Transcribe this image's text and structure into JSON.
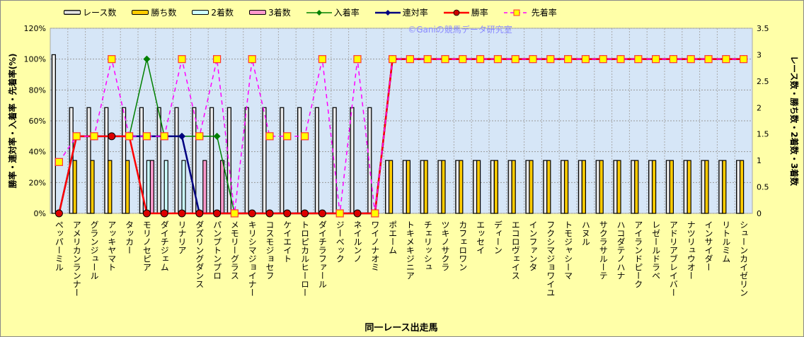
{
  "watermark": "©Ganiの競馬データ研究室",
  "chart_data": {
    "type": "bar",
    "title": "",
    "xlabel": "同一レース出走馬",
    "ylabel": "勝率・連対率・入着率・先着率(%)",
    "y2label": "レース数・勝ち数・2着数・3着数",
    "ylim": [
      0,
      120
    ],
    "y2lim": [
      0,
      3.5
    ],
    "yticks": [
      "0%",
      "20%",
      "40%",
      "60%",
      "80%",
      "100%",
      "120%"
    ],
    "y2ticks": [
      "0",
      "0.5",
      "1",
      "1.5",
      "2",
      "2.5",
      "3",
      "3.5"
    ],
    "grid": true,
    "legend_position": "top",
    "categories": [
      "ペッパーミル",
      "アメリカンランナー",
      "グランジュール",
      "アッキヤマト",
      "タッカー",
      "モリノセピア",
      "ダイチジェム",
      "リナリア",
      "ダズリングダンス",
      "パンプトンプロ",
      "メモリーグラス",
      "キリシマジョイナー",
      "コスモジョセフ",
      "ケイエイト",
      "トロピカルヒーロー",
      "ダイチラファール",
      "ジーベック",
      "ネイルンノ",
      "ワイノナオミ",
      "ポエーム",
      "トキメキジニア",
      "チェリッシュ",
      "ツキノサクラ",
      "カフェロワン",
      "エッセイ",
      "ディーン",
      "エコロヴェイス",
      "インファンタ",
      "フクシマジョワイユ",
      "トモジャシーマ",
      "ハヌル",
      "サクラサルーテ",
      "ハコダテノハナ",
      "アイランドピーク",
      "レゼールドラベ",
      "アドリアブレイバー",
      "ナツリュウオー",
      "インサイダー",
      "リトルミム",
      "シューンカイゼリン"
    ],
    "bar_series": [
      {
        "name": "レース数",
        "axis": "right",
        "color": "#ffffff",
        "values": [
          3,
          2,
          2,
          2,
          2,
          2,
          2,
          2,
          2,
          2,
          2,
          2,
          2,
          2,
          2,
          2,
          2,
          2,
          2,
          1,
          1,
          1,
          1,
          1,
          1,
          1,
          1,
          1,
          1,
          1,
          1,
          1,
          1,
          1,
          1,
          1,
          1,
          1,
          1,
          1
        ]
      },
      {
        "name": "勝ち数",
        "axis": "right",
        "color": "#ffcc00",
        "values": [
          0,
          1,
          1,
          1,
          1,
          0,
          0,
          0,
          0,
          0,
          0,
          0,
          0,
          0,
          0,
          0,
          0,
          0,
          0,
          1,
          1,
          1,
          1,
          1,
          1,
          1,
          1,
          1,
          1,
          1,
          1,
          1,
          1,
          1,
          1,
          1,
          1,
          1,
          1,
          1
        ]
      },
      {
        "name": "2着数",
        "axis": "right",
        "color": "#ccffff",
        "values": [
          0,
          0,
          0,
          0,
          0,
          1,
          1,
          1,
          0,
          0,
          0,
          0,
          0,
          0,
          0,
          0,
          0,
          0,
          0,
          0,
          0,
          0,
          0,
          0,
          0,
          0,
          0,
          0,
          0,
          0,
          0,
          0,
          0,
          0,
          0,
          0,
          0,
          0,
          0,
          0
        ]
      },
      {
        "name": "3着数",
        "axis": "right",
        "color": "#ff99cc",
        "values": [
          0,
          0,
          0,
          0,
          0,
          1,
          0,
          0,
          1,
          1,
          0,
          0,
          0,
          0,
          0,
          0,
          0,
          0,
          0,
          0,
          0,
          0,
          0,
          0,
          0,
          0,
          0,
          0,
          0,
          0,
          0,
          0,
          0,
          0,
          0,
          0,
          0,
          0,
          0,
          0
        ]
      }
    ],
    "line_series": [
      {
        "name": "入着率",
        "axis": "left",
        "color": "#008000",
        "marker": "diamond",
        "dash": false,
        "values": [
          0,
          50,
          50,
          50,
          50,
          100,
          50,
          50,
          50,
          50,
          0,
          0,
          0,
          0,
          0,
          0,
          0,
          0,
          0,
          100,
          100,
          100,
          100,
          100,
          100,
          100,
          100,
          100,
          100,
          100,
          100,
          100,
          100,
          100,
          100,
          100,
          100,
          100,
          100,
          100
        ]
      },
      {
        "name": "連対率",
        "axis": "left",
        "color": "#000080",
        "marker": "diamond",
        "dash": false,
        "values": [
          0,
          50,
          50,
          50,
          50,
          50,
          50,
          50,
          0,
          0,
          0,
          0,
          0,
          0,
          0,
          0,
          0,
          0,
          0,
          100,
          100,
          100,
          100,
          100,
          100,
          100,
          100,
          100,
          100,
          100,
          100,
          100,
          100,
          100,
          100,
          100,
          100,
          100,
          100,
          100
        ]
      },
      {
        "name": "勝率",
        "axis": "left",
        "color": "#ff0000",
        "marker": "circle",
        "dash": false,
        "values": [
          0,
          50,
          50,
          50,
          50,
          0,
          0,
          0,
          0,
          0,
          0,
          0,
          0,
          0,
          0,
          0,
          0,
          0,
          0,
          100,
          100,
          100,
          100,
          100,
          100,
          100,
          100,
          100,
          100,
          100,
          100,
          100,
          100,
          100,
          100,
          100,
          100,
          100,
          100,
          100
        ]
      },
      {
        "name": "先着率",
        "axis": "left",
        "color": "#ff00ff",
        "marker": "square",
        "dash": true,
        "values": [
          33.3,
          50,
          50,
          100,
          50,
          50,
          50,
          100,
          50,
          100,
          0,
          100,
          50,
          50,
          50,
          100,
          0,
          100,
          0,
          100,
          100,
          100,
          100,
          100,
          100,
          100,
          100,
          100,
          100,
          100,
          100,
          100,
          100,
          100,
          100,
          100,
          100,
          100,
          100,
          100
        ]
      }
    ]
  }
}
